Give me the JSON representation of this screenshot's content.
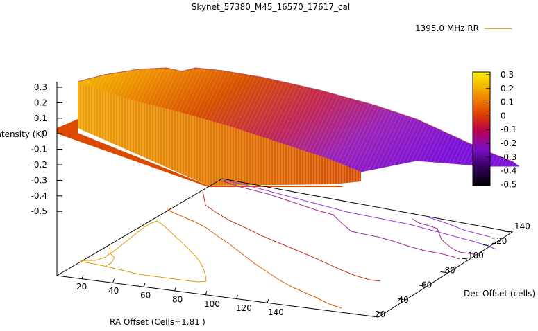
{
  "chart_data": {
    "type": "surface3d",
    "title": "Skynet_57380_M45_16570_17617_cal",
    "legend": {
      "label": "1395.0 MHz RR",
      "color": "#c9a100",
      "position": "top-right"
    },
    "zlabel": "Intensity (K)",
    "xlabel": "RA Offset (Cells=1.81')",
    "ylabel": "Dec Offset (cells)",
    "zlim": [
      -0.5,
      0.3
    ],
    "zticks": [
      "0.3",
      "0.2",
      "0.1",
      "0",
      "-0.1",
      "-0.2",
      "-0.3",
      "-0.4",
      "-0.5"
    ],
    "xticks": [
      "20",
      "40",
      "60",
      "80",
      "100",
      "120",
      "140"
    ],
    "yticks": [
      "20",
      "40",
      "60",
      "80",
      "100",
      "120",
      "140"
    ],
    "colorbar": {
      "ticks": [
        "0.3",
        "0.2",
        "0.1",
        "0",
        "-0.1",
        "-0.2",
        "-0.3",
        "-0.4",
        "-0.5"
      ],
      "range": [
        -0.5,
        0.3
      ],
      "palette": [
        "#000000",
        "#3a0066",
        "#7a10c8",
        "#b8004f",
        "#dc3a00",
        "#ef7f00",
        "#f5b800",
        "#ffef10"
      ]
    },
    "surface": {
      "description": "Intensity decreases from about +0.3 K at low Dec offset to about -0.3 K at high Dec offset",
      "rows": [
        {
          "dec": 20,
          "intensity": 0.3
        },
        {
          "dec": 40,
          "intensity": 0.2
        },
        {
          "dec": 60,
          "intensity": 0.1
        },
        {
          "dec": 80,
          "intensity": 0.0
        },
        {
          "dec": 100,
          "intensity": -0.1
        },
        {
          "dec": 120,
          "intensity": -0.2
        },
        {
          "dec": 140,
          "intensity": -0.3
        }
      ]
    },
    "contours": [
      {
        "level": 0.2,
        "color": "#e39b00"
      },
      {
        "level": 0.1,
        "color": "#dc5a00"
      },
      {
        "level": 0.0,
        "color": "#c4381a"
      },
      {
        "level": -0.1,
        "color": "#a22a8e"
      },
      {
        "level": -0.2,
        "color": "#9a3ad8"
      }
    ]
  }
}
